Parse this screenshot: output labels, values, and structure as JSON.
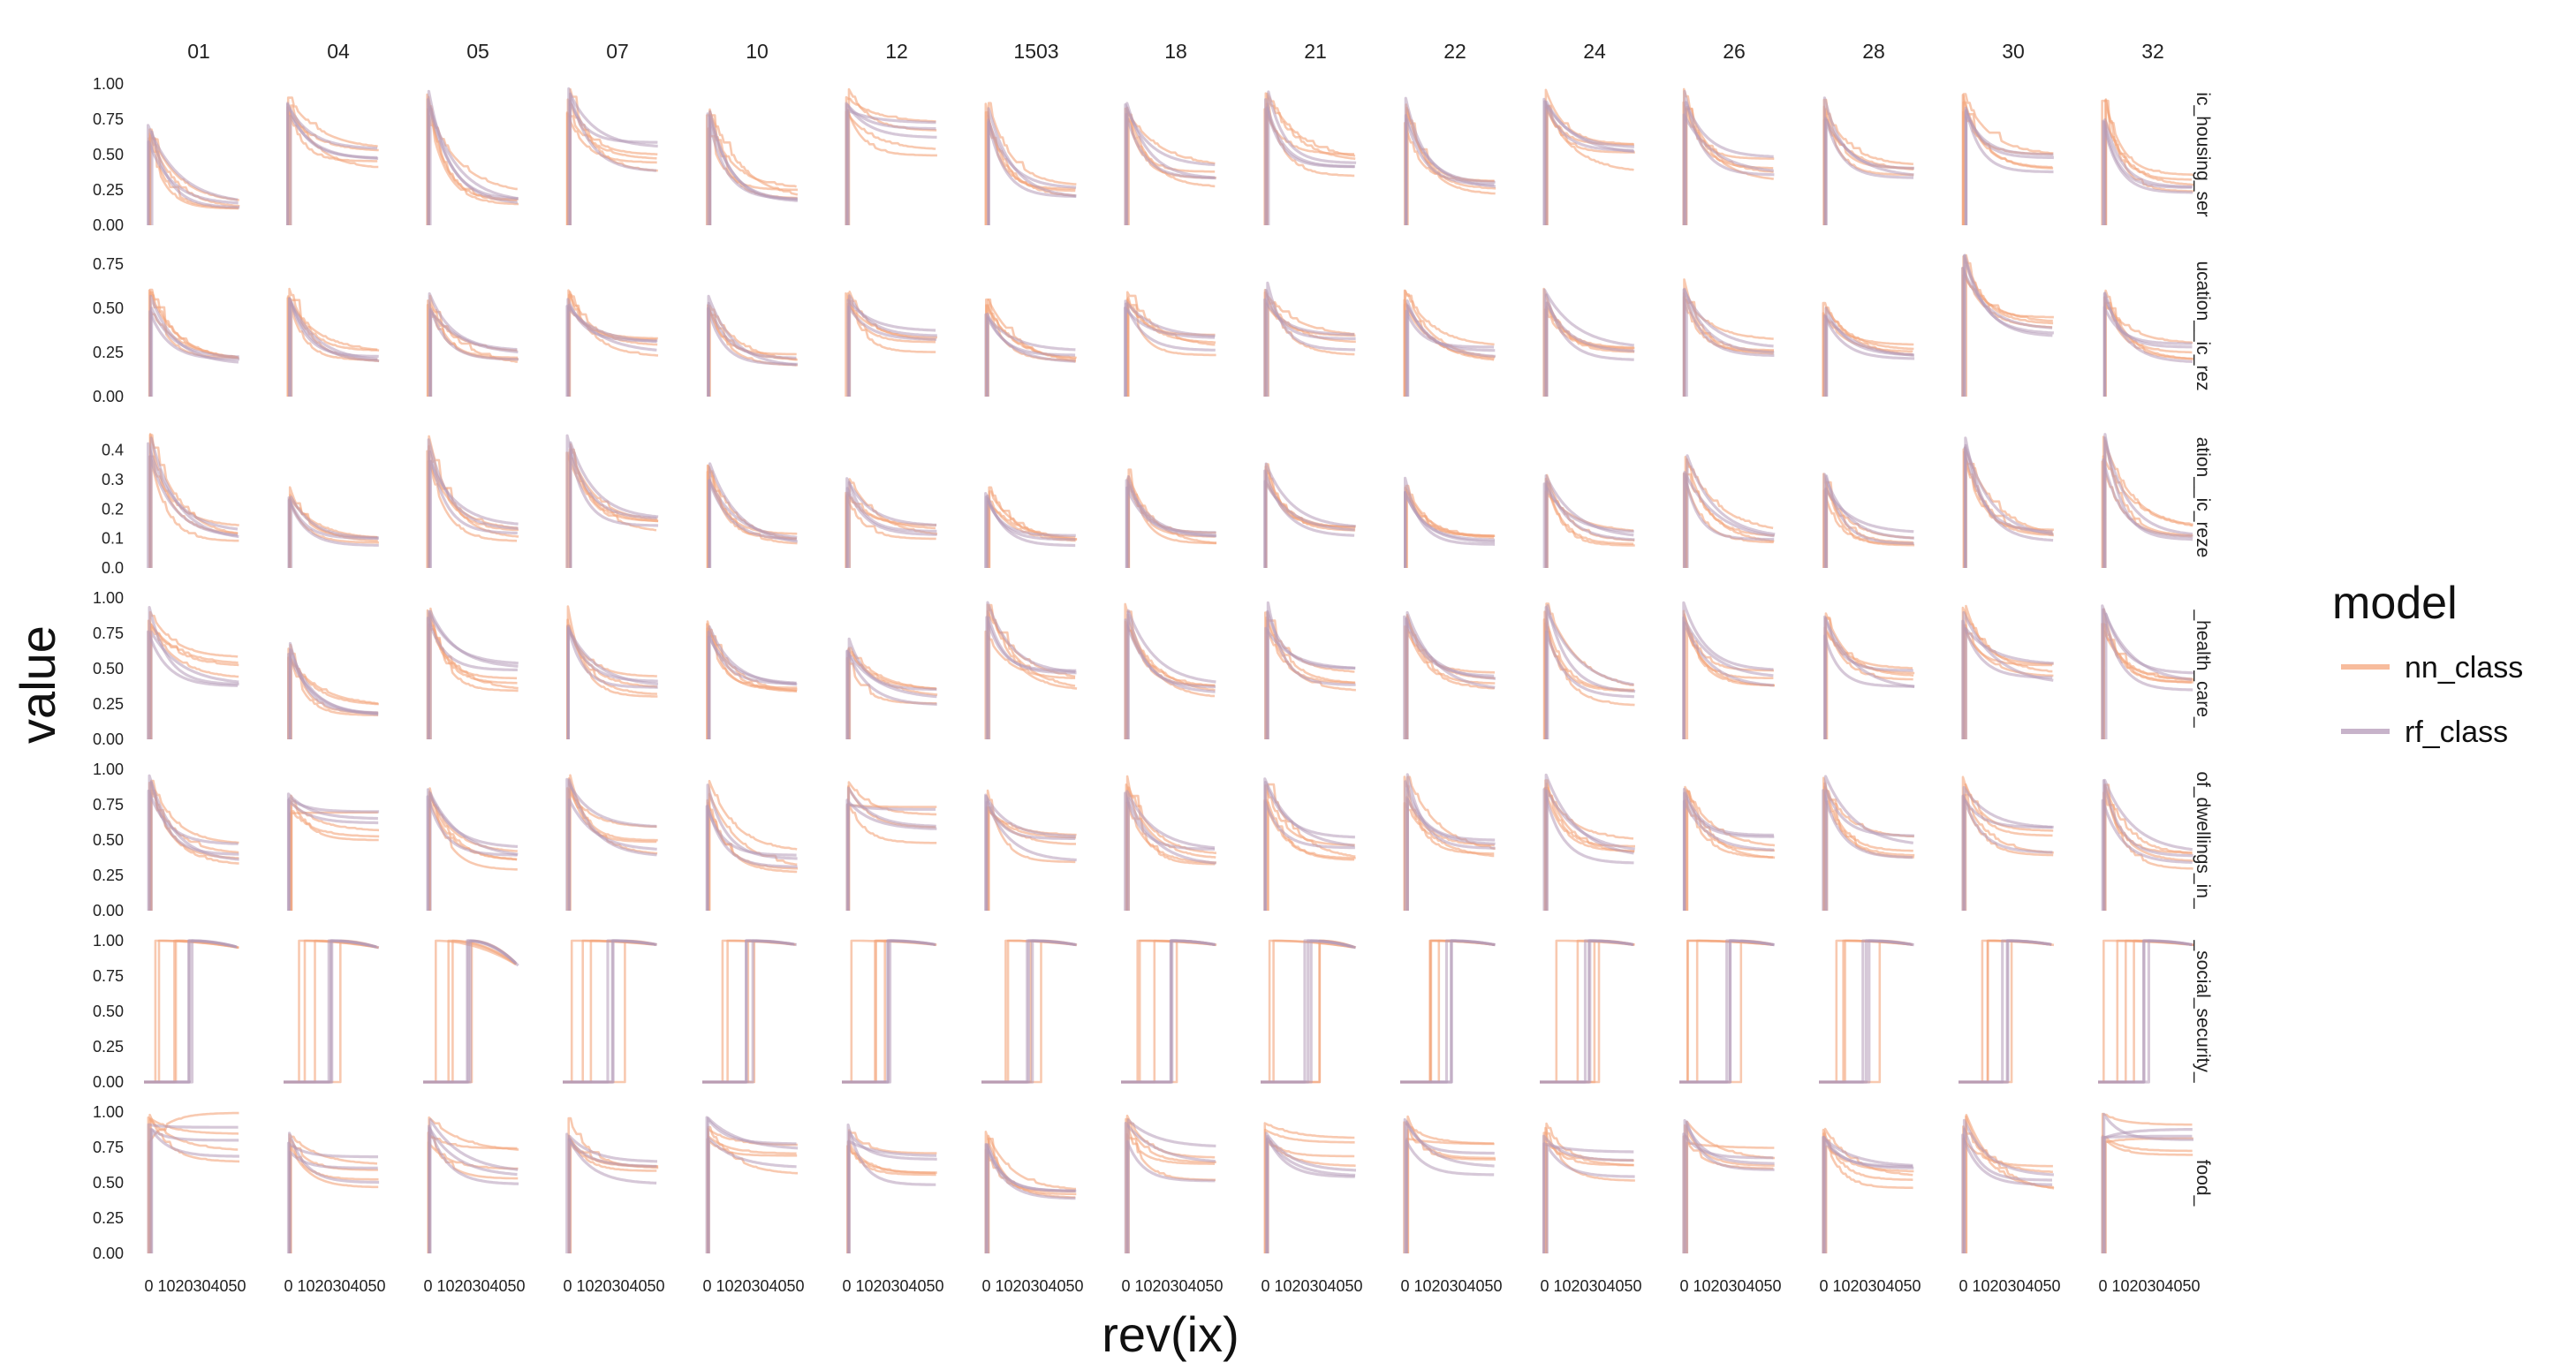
{
  "chart_data": {
    "type": "line",
    "xlabel": "rev(ix)",
    "ylabel": "value",
    "x_tick_text": "0 1020304050",
    "xlim": [
      0,
      55
    ],
    "columns": [
      "01",
      "04",
      "05",
      "07",
      "10",
      "12",
      "1503",
      "18",
      "21",
      "22",
      "24",
      "26",
      "28",
      "30",
      "32"
    ],
    "rows": [
      {
        "label": "ic_housing_ser",
        "ylim": [
          0,
          1.0
        ],
        "yticks": [
          "1.00",
          "0.75",
          "0.50",
          "0.25",
          "0.00"
        ],
        "tick_values": [
          1.0,
          0.75,
          0.5,
          0.25,
          0.0
        ]
      },
      {
        "label": "ucation__ic_rez",
        "ylim": [
          0,
          0.8
        ],
        "yticks": [
          "0.75",
          "0.50",
          "0.25",
          "0.00"
        ],
        "tick_values": [
          0.75,
          0.5,
          0.25,
          0.0
        ]
      },
      {
        "label": "ation__ic_reze",
        "ylim": [
          0,
          0.48
        ],
        "yticks": [
          "0.4",
          "0.3",
          "0.2",
          "0.1",
          "0.0"
        ],
        "tick_values": [
          0.4,
          0.3,
          0.2,
          0.1,
          0.0
        ]
      },
      {
        "label": "_health_care_",
        "ylim": [
          0,
          1.0
        ],
        "yticks": [
          "1.00",
          "0.75",
          "0.50",
          "0.25",
          "0.00"
        ],
        "tick_values": [
          1.0,
          0.75,
          0.5,
          0.25,
          0.0
        ]
      },
      {
        "label": "of_dwellings_in_",
        "ylim": [
          0,
          1.0
        ],
        "yticks": [
          "1.00",
          "0.75",
          "0.50",
          "0.25",
          "0.00"
        ],
        "tick_values": [
          1.0,
          0.75,
          0.5,
          0.25,
          0.0
        ]
      },
      {
        "label": "_social_security_",
        "ylim": [
          0,
          1.0
        ],
        "yticks": [
          "1.00",
          "0.75",
          "0.50",
          "0.25",
          "0.00"
        ],
        "tick_values": [
          1.0,
          0.75,
          0.5,
          0.25,
          0.0
        ]
      },
      {
        "label": "food_",
        "ylim": [
          0,
          1.0
        ],
        "yticks": [
          "1.00",
          "0.75",
          "0.50",
          "0.25",
          "0.00"
        ],
        "tick_values": [
          1.0,
          0.75,
          0.5,
          0.25,
          0.0
        ]
      }
    ],
    "legend": {
      "title": "model",
      "position": "right",
      "entries": [
        {
          "name": "nn_class",
          "color": "#f4a57c"
        },
        {
          "name": "rf_class",
          "color": "#b49ab8"
        }
      ]
    },
    "series_note": "Each panel shows several nn_class and rf_class runs: a rise from 0 to a peak near x=3 followed by a decay; social_security panels show 0 then a step to ~1.0.",
    "panel_params": {
      "ic_housing_ser": {
        "peak": [
          0.7,
          0.95,
          0.95,
          0.95,
          0.85,
          0.95,
          0.85,
          0.9,
          0.95,
          0.9,
          0.95,
          0.95,
          0.92,
          0.95,
          0.9
        ],
        "floor": [
          0.15,
          0.5,
          0.18,
          0.5,
          0.22,
          0.65,
          0.25,
          0.35,
          0.42,
          0.28,
          0.48,
          0.4,
          0.38,
          0.45,
          0.3
        ]
      },
      "ucation__ic_rez": {
        "peak": [
          0.6,
          0.6,
          0.6,
          0.6,
          0.6,
          0.6,
          0.55,
          0.6,
          0.65,
          0.6,
          0.6,
          0.65,
          0.55,
          0.85,
          0.6
        ],
        "floor": [
          0.22,
          0.22,
          0.22,
          0.3,
          0.22,
          0.32,
          0.22,
          0.3,
          0.3,
          0.25,
          0.25,
          0.27,
          0.27,
          0.38,
          0.25
        ]
      },
      "ation__ic_reze": {
        "peak": [
          0.45,
          0.28,
          0.45,
          0.45,
          0.35,
          0.3,
          0.28,
          0.33,
          0.35,
          0.3,
          0.32,
          0.38,
          0.32,
          0.45,
          0.45
        ],
        "floor": [
          0.12,
          0.1,
          0.12,
          0.14,
          0.1,
          0.12,
          0.1,
          0.1,
          0.12,
          0.1,
          0.1,
          0.1,
          0.1,
          0.12,
          0.12
        ]
      },
      "_health_care_": {
        "peak": [
          0.95,
          0.7,
          0.95,
          0.95,
          0.9,
          0.7,
          0.95,
          0.95,
          0.95,
          0.95,
          0.95,
          0.95,
          0.9,
          0.95,
          0.95
        ],
        "floor": [
          0.5,
          0.2,
          0.45,
          0.4,
          0.4,
          0.3,
          0.45,
          0.38,
          0.42,
          0.42,
          0.3,
          0.42,
          0.42,
          0.45,
          0.42
        ]
      },
      "of_dwellings_in_": {
        "peak": [
          0.95,
          0.85,
          0.95,
          0.95,
          0.9,
          0.9,
          0.85,
          0.95,
          0.95,
          0.95,
          0.95,
          0.95,
          0.95,
          0.95,
          0.95
        ],
        "floor": [
          0.42,
          0.6,
          0.38,
          0.5,
          0.35,
          0.62,
          0.45,
          0.38,
          0.45,
          0.45,
          0.42,
          0.45,
          0.45,
          0.5,
          0.35
        ]
      },
      "_social_security_": {
        "peak": [
          1.0,
          1.0,
          1.0,
          1.0,
          1.0,
          1.0,
          1.0,
          1.0,
          1.0,
          1.0,
          1.0,
          1.0,
          1.0,
          1.0,
          1.0
        ],
        "floor": [
          0.95,
          0.95,
          0.82,
          0.97,
          0.97,
          0.97,
          0.97,
          0.97,
          0.95,
          0.97,
          0.97,
          0.97,
          0.97,
          0.97,
          0.97
        ]
      },
      "food_": {
        "peak": [
          0.97,
          0.85,
          0.95,
          0.95,
          0.95,
          0.9,
          0.9,
          0.97,
          0.97,
          0.95,
          0.95,
          0.97,
          0.9,
          0.97,
          0.97
        ],
        "floor": [
          0.85,
          0.6,
          0.62,
          0.55,
          0.65,
          0.6,
          0.45,
          0.65,
          0.72,
          0.65,
          0.6,
          0.75,
          0.55,
          0.52,
          0.82
        ]
      }
    }
  }
}
